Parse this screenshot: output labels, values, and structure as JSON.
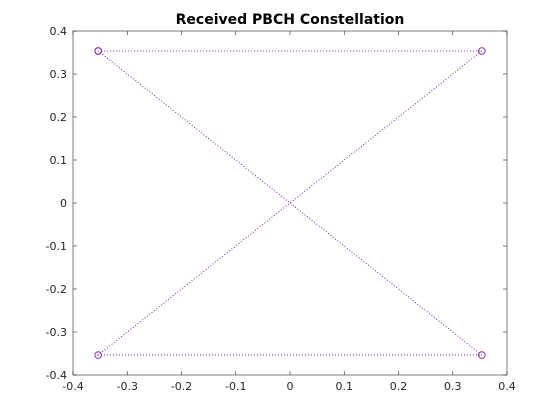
{
  "chart_data": {
    "type": "scatter",
    "title": "Received PBCH Constellation",
    "xlabel": "",
    "ylabel": "",
    "xlim": [
      -0.4,
      0.4
    ],
    "ylim": [
      -0.4,
      0.4
    ],
    "xticks": [
      -0.4,
      -0.3,
      -0.2,
      -0.1,
      0,
      0.1,
      0.2,
      0.3,
      0.4
    ],
    "yticks": [
      -0.4,
      -0.3,
      -0.2,
      -0.1,
      0,
      0.1,
      0.2,
      0.3,
      0.4
    ],
    "xtick_labels": [
      "-0.4",
      "-0.3",
      "-0.2",
      "-0.1",
      "0",
      "0.1",
      "0.2",
      "0.3",
      "0.4"
    ],
    "ytick_labels": [
      "-0.4",
      "-0.3",
      "-0.2",
      "-0.1",
      "0",
      "0.1",
      "0.2",
      "0.3",
      "0.4"
    ],
    "grid": false,
    "marker": "circle",
    "line_style": "dotted",
    "color": "#7e1ea6",
    "series": [
      {
        "x": [
          -0.3536,
          0.3536,
          -0.3536,
          0.3536,
          -0.3536
        ],
        "y": [
          0.3536,
          0.3536,
          -0.3536,
          -0.3536,
          0.3536
        ]
      }
    ]
  }
}
